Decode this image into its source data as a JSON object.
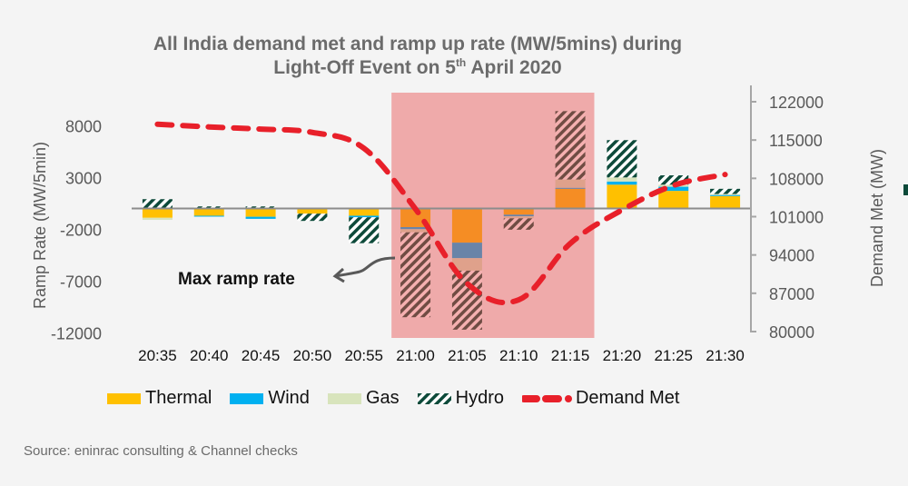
{
  "chart_data": {
    "type": "bar",
    "title_main": "All India demand met and ramp up rate (MW/5mins) during",
    "title_line2_pre": "Light-Off Event on 5",
    "title_line2_sup": "th",
    "title_line2_post": " April 2020",
    "categories": [
      "20:35",
      "20:40",
      "20:45",
      "20:50",
      "20:55",
      "21:00",
      "21:05",
      "21:10",
      "21:15",
      "21:20",
      "21:25",
      "21:30"
    ],
    "ylabel_left": "Ramp Rate (MW/5min)",
    "ylabel_right": "Demand Met (MW)",
    "ylim_left": [
      -12000,
      10000
    ],
    "ylim_right": [
      80000,
      124000
    ],
    "yticks_left": [
      "8000",
      "3000",
      "-2000",
      "-7000",
      "-12000"
    ],
    "yticks_left_values": [
      8000,
      3000,
      -2000,
      -7000,
      -12000
    ],
    "yticks_right": [
      "122000",
      "115000",
      "108000",
      "101000",
      "94000",
      "87000",
      "80000"
    ],
    "yticks_right_values": [
      122000,
      115000,
      108000,
      101000,
      94000,
      87000,
      80000
    ],
    "series": [
      {
        "name": "Thermal",
        "kind": "bar",
        "color": "#ffc000",
        "values": [
          -900,
          -700,
          -800,
          -500,
          -700,
          -1800,
          -3300,
          -600,
          1900,
          2300,
          1700,
          1200
        ]
      },
      {
        "name": "Wind",
        "kind": "bar",
        "color": "#00b0f0",
        "values": [
          0,
          -50,
          -200,
          0,
          -150,
          -200,
          -1500,
          -150,
          100,
          300,
          400,
          100
        ]
      },
      {
        "name": "Gas",
        "kind": "bar",
        "color": "#d8e4bc",
        "values": [
          -200,
          0,
          0,
          0,
          0,
          -300,
          -1200,
          -200,
          800,
          400,
          200,
          100
        ]
      },
      {
        "name": "Hydro",
        "kind": "bar-hatched",
        "color": "#0d4a3a",
        "values": [
          900,
          200,
          200,
          -700,
          -2500,
          -8200,
          -5700,
          -1100,
          6600,
          3600,
          900,
          500
        ]
      },
      {
        "name": "Demand Met",
        "kind": "line-dashed",
        "color": "#e8202a",
        "axis": "right",
        "values": [
          117900,
          117400,
          117000,
          116400,
          113500,
          102400,
          88800,
          85800,
          96100,
          102200,
          106700,
          108700
        ]
      }
    ],
    "highlight": {
      "from": "21:00",
      "to": "21:15",
      "color": "#f1a7a7"
    },
    "annotation": "Max ramp rate",
    "legend_position": "bottom"
  },
  "source": "Source: eninrac consulting & Channel checks"
}
